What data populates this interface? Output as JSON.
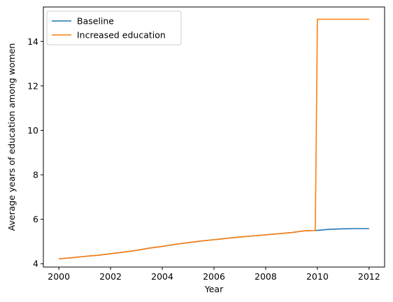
{
  "chart_data": {
    "type": "line",
    "xlabel": "Year",
    "ylabel": "Average years of education among women",
    "xlim": [
      1999.4,
      2012.6
    ],
    "ylim": [
      3.85,
      15.55
    ],
    "x_ticks": [
      2000,
      2002,
      2004,
      2006,
      2008,
      2010,
      2012
    ],
    "y_ticks": [
      4,
      6,
      8,
      10,
      12,
      14
    ],
    "legend_position": "top-left",
    "grid": false,
    "series": [
      {
        "name": "Baseline",
        "color": "#1f77b4",
        "x": [
          2000,
          2000.5,
          2001,
          2001.5,
          2002,
          2002.5,
          2003,
          2003.5,
          2004,
          2004.5,
          2005,
          2005.5,
          2006,
          2006.5,
          2007,
          2007.5,
          2008,
          2008.5,
          2009,
          2009.5,
          2010,
          2010.5,
          2011,
          2011.5,
          2012
        ],
        "y": [
          4.22,
          4.27,
          4.33,
          4.38,
          4.45,
          4.52,
          4.6,
          4.7,
          4.78,
          4.87,
          4.95,
          5.02,
          5.08,
          5.14,
          5.2,
          5.25,
          5.3,
          5.35,
          5.4,
          5.48,
          5.5,
          5.55,
          5.57,
          5.58,
          5.58
        ]
      },
      {
        "name": "Increased education",
        "color": "#ff7f0e",
        "x": [
          2000,
          2000.5,
          2001,
          2001.5,
          2002,
          2002.5,
          2003,
          2003.5,
          2004,
          2004.5,
          2005,
          2005.5,
          2006,
          2006.5,
          2007,
          2007.5,
          2008,
          2008.5,
          2009,
          2009.5,
          2009.92,
          2010,
          2010.5,
          2011,
          2011.5,
          2012
        ],
        "y": [
          4.22,
          4.27,
          4.33,
          4.38,
          4.45,
          4.52,
          4.6,
          4.7,
          4.78,
          4.87,
          4.95,
          5.02,
          5.08,
          5.14,
          5.2,
          5.25,
          5.3,
          5.35,
          5.4,
          5.48,
          5.5,
          15.0,
          15.0,
          15.0,
          15.0,
          15.0
        ]
      }
    ]
  }
}
